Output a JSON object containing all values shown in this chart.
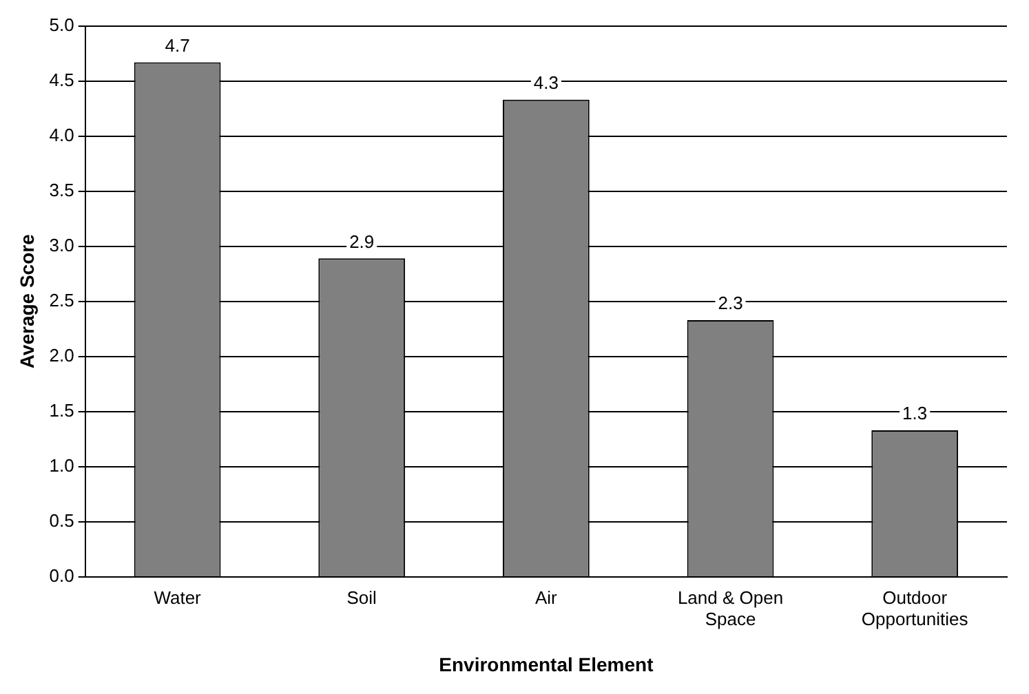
{
  "chart_data": {
    "type": "bar",
    "xlabel": "Environmental Element",
    "ylabel": "Average Score",
    "categories": [
      "Water",
      "Soil",
      "Air",
      "Land & Open Space",
      "Outdoor Opportunities"
    ],
    "values": [
      4.67,
      2.89,
      4.33,
      2.33,
      1.33
    ],
    "value_labels": [
      "4.7",
      "2.9",
      "4.3",
      "2.3",
      "1.3"
    ],
    "color": "#808080",
    "ylim": [
      0,
      5
    ],
    "yticks": [
      {
        "value": 0,
        "label": "0.0"
      },
      {
        "value": 0.5,
        "label": "0.5"
      },
      {
        "value": 1,
        "label": "1.0"
      },
      {
        "value": 1.5,
        "label": "1.5"
      },
      {
        "value": 2,
        "label": "2.0"
      },
      {
        "value": 2.5,
        "label": "2.5"
      },
      {
        "value": 3,
        "label": "3.0"
      },
      {
        "value": 3.5,
        "label": "3.5"
      },
      {
        "value": 4,
        "label": "4.0"
      },
      {
        "value": 4.5,
        "label": "4.5"
      },
      {
        "value": 5,
        "label": "5.0"
      }
    ],
    "grid": "y",
    "legend": false
  }
}
